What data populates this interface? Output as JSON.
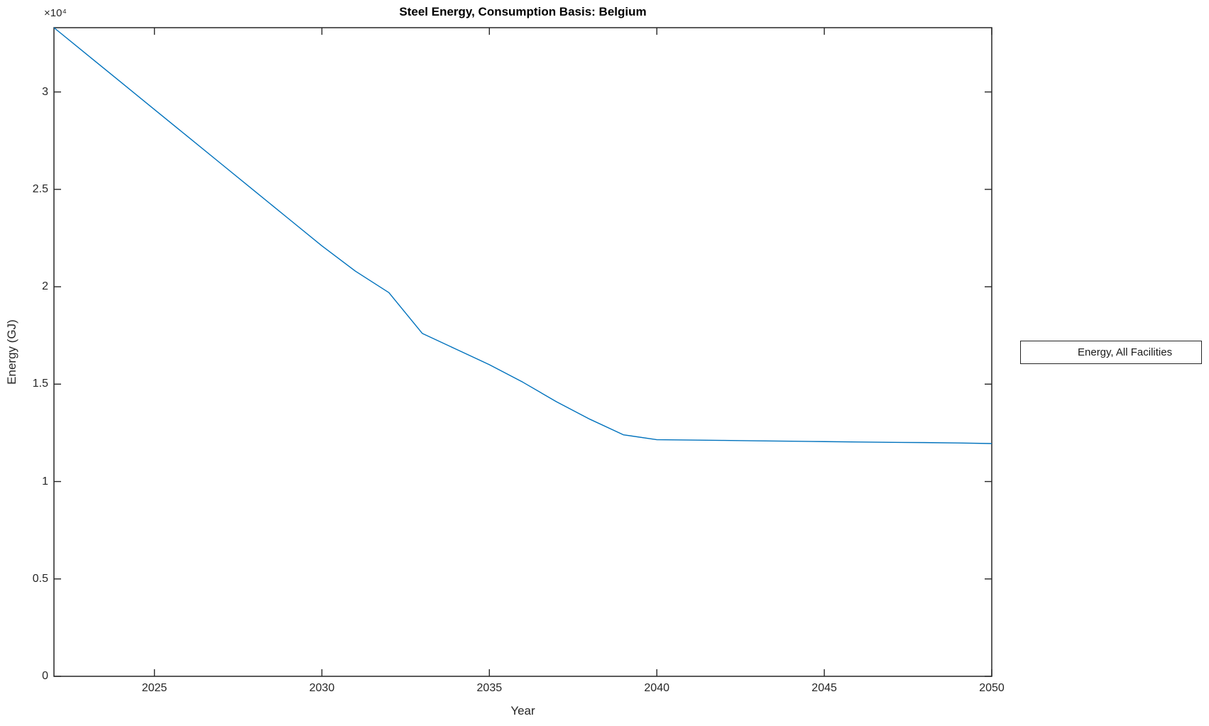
{
  "chart_data": {
    "type": "line",
    "title": "Steel Energy, Consumption Basis: Belgium",
    "xlabel": "Year",
    "ylabel": "Energy (GJ)",
    "y_multiplier": "×10⁴",
    "xlim": [
      2022,
      2050
    ],
    "ylim": [
      0,
      33300
    ],
    "x_ticks": [
      2025,
      2030,
      2035,
      2040,
      2045,
      2050
    ],
    "x_tick_labels": [
      "2025",
      "2030",
      "2035",
      "2040",
      "2045",
      "2050"
    ],
    "y_ticks": [
      0,
      5000,
      10000,
      15000,
      20000,
      25000,
      30000
    ],
    "y_tick_labels": [
      "0",
      "0.5",
      "1",
      "1.5",
      "2",
      "2.5",
      "3"
    ],
    "grid": false,
    "box": true,
    "legend": {
      "position": "outside-right",
      "entries": [
        {
          "label": "Energy, All Facilities",
          "color": "#0072BD"
        }
      ]
    },
    "series": [
      {
        "name": "Energy, All Facilities",
        "color": "#0072BD",
        "x": [
          2022,
          2023,
          2024,
          2025,
          2026,
          2027,
          2028,
          2029,
          2030,
          2031,
          2032,
          2033,
          2034,
          2035,
          2036,
          2037,
          2038,
          2039,
          2040,
          2041,
          2042,
          2043,
          2044,
          2045,
          2046,
          2047,
          2048,
          2049,
          2050
        ],
        "values": [
          33300,
          31900,
          30500,
          29100,
          27700,
          26300,
          24900,
          23500,
          22100,
          20800,
          19700,
          17600,
          16800,
          16000,
          15100,
          14100,
          13200,
          12400,
          12150,
          12130,
          12110,
          12090,
          12070,
          12050,
          12030,
          12010,
          12000,
          11980,
          11950
        ]
      }
    ],
    "axis_color": "#262626",
    "background_color": "#ffffff"
  }
}
